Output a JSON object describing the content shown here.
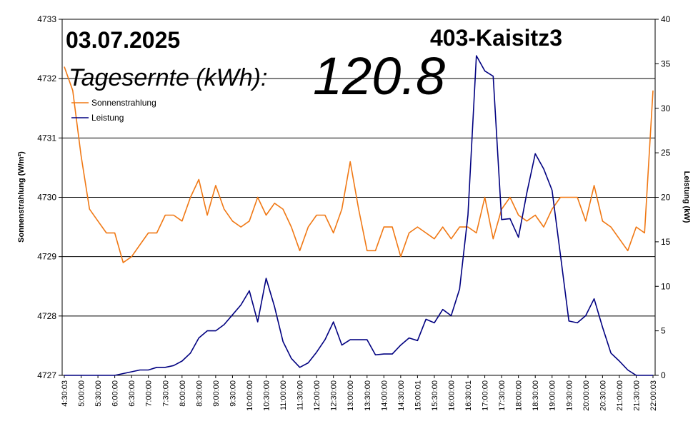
{
  "header": {
    "date": "03.07.2025",
    "station": "403-Kaisitz3",
    "yield_label": "Tagesernte (kWh):",
    "yield_value": "120.8"
  },
  "chart_data": {
    "type": "line",
    "left_axis": {
      "label": "Sonnenstrahlung (W/m²)",
      "min": 4727,
      "max": 4733,
      "ticks": [
        "4727",
        "4728",
        "4729",
        "4730",
        "4731",
        "4732",
        "4733"
      ]
    },
    "right_axis": {
      "label": "Leistung (kW)",
      "min": 0,
      "max": 40,
      "ticks": [
        "0",
        "5",
        "10",
        "15",
        "20",
        "25",
        "30",
        "35",
        "40"
      ]
    },
    "x_ticks": [
      "4:30:03",
      "5:00:00",
      "5:30:00",
      "6:00:00",
      "6:30:00",
      "7:00:00",
      "7:30:00",
      "8:00:00",
      "8:30:00",
      "9:00:00",
      "9:30:00",
      "10:00:00",
      "10:30:00",
      "11:00:00",
      "11:30:00",
      "12:00:00",
      "12:30:00",
      "13:00:00",
      "13:30:00",
      "14:00:00",
      "14:30:00",
      "15:00:01",
      "15:30:00",
      "16:00:00",
      "16:30:01",
      "17:00:00",
      "17:30:00",
      "18:00:00",
      "18:30:00",
      "19:00:00",
      "19:30:00",
      "20:00:00",
      "20:30:00",
      "21:00:00",
      "21:30:00",
      "22:00:03"
    ],
    "gridlines": "horizontal",
    "legend_position": "top-left",
    "series": [
      {
        "name": "Sonnenstrahlung",
        "axis": "left",
        "color": "#f07814",
        "values": [
          4732.2,
          4731.8,
          4730.7,
          4729.8,
          4729.6,
          4729.4,
          4729.4,
          4728.9,
          4729.0,
          4729.2,
          4729.4,
          4729.4,
          4729.7,
          4729.7,
          4729.6,
          4730.0,
          4730.3,
          4729.7,
          4730.2,
          4729.8,
          4729.6,
          4729.5,
          4729.6,
          4730.0,
          4729.7,
          4729.9,
          4729.8,
          4729.5,
          4729.1,
          4729.5,
          4729.7,
          4729.7,
          4729.4,
          4729.8,
          4730.6,
          4729.8,
          4729.1,
          4729.1,
          4729.5,
          4729.5,
          4729.0,
          4729.4,
          4729.5,
          4729.4,
          4729.3,
          4729.5,
          4729.3,
          4729.5,
          4729.5,
          4729.4,
          4730.0,
          4729.3,
          4729.8,
          4730.0,
          4729.7,
          4729.6,
          4729.7,
          4729.5,
          4729.8,
          4730.0,
          4730.0,
          4730.0,
          4729.6,
          4730.2,
          4729.6,
          4729.5,
          4729.3,
          4729.1,
          4729.5,
          4729.4,
          4731.8
        ]
      },
      {
        "name": "Leistung",
        "axis": "right",
        "color": "#000080",
        "values": [
          0,
          0,
          0,
          0,
          0,
          0,
          0,
          0.2,
          0.4,
          0.6,
          0.6,
          0.9,
          0.9,
          1.1,
          1.6,
          2.5,
          4.2,
          5.0,
          5.0,
          5.7,
          6.8,
          7.9,
          9.5,
          6.0,
          10.9,
          7.7,
          3.8,
          1.9,
          0.9,
          1.4,
          2.6,
          4.0,
          6.0,
          3.4,
          4.0,
          4.0,
          4.0,
          2.3,
          2.4,
          2.4,
          3.4,
          4.2,
          3.9,
          6.3,
          5.9,
          7.4,
          6.7,
          9.7,
          18.0,
          35.9,
          34.2,
          33.6,
          17.5,
          17.6,
          15.5,
          20.5,
          24.9,
          23.2,
          20.8,
          13.5,
          6.1,
          5.9,
          6.7,
          8.6,
          5.4,
          2.5,
          1.6,
          0.6,
          0,
          0,
          0
        ]
      }
    ]
  }
}
